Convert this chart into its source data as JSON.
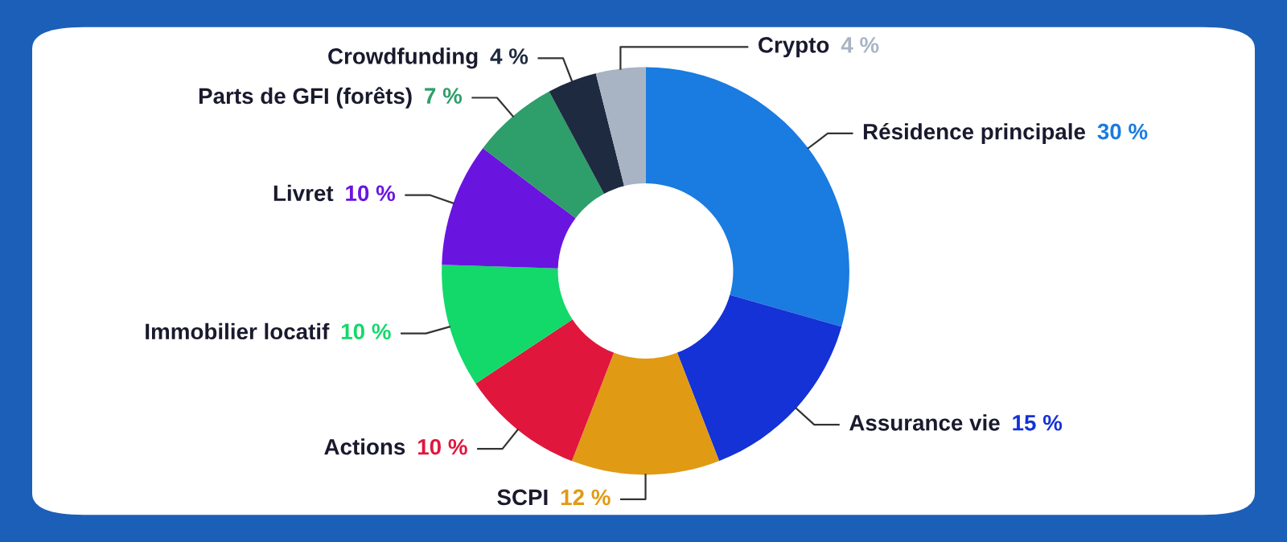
{
  "chart_data": {
    "type": "donut",
    "categories": [
      "Résidence principale",
      "Assurance vie",
      "SCPI",
      "Actions",
      "Immobilier locatif",
      "Livret",
      "Parts de GFI (forêts)",
      "Crowdfunding",
      "Crypto"
    ],
    "values": [
      30,
      15,
      12,
      10,
      10,
      10,
      7,
      4,
      4
    ],
    "value_labels": [
      "30 %",
      "15 %",
      "12 %",
      "10 %",
      "10 %",
      "10 %",
      "7 %",
      "4 %",
      "4 %"
    ],
    "colors": [
      "#1a7be0",
      "#1432d6",
      "#e09a14",
      "#e0163c",
      "#12d96a",
      "#6a14e0",
      "#2e9e6a",
      "#1e2a40",
      "#a8b4c4"
    ],
    "legend": false
  }
}
